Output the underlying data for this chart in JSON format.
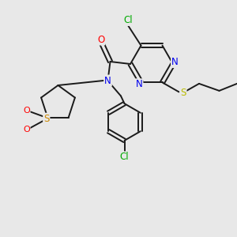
{
  "background_color": "#e8e8e8",
  "bond_color": "#1a1a1a",
  "colors": {
    "N": "#0000ee",
    "O": "#ff0000",
    "S_yellow": "#bbbb00",
    "S_red": "#cc8800",
    "Cl": "#00aa00",
    "C": "#1a1a1a"
  },
  "lw": 1.4,
  "fontsize": 8.5
}
